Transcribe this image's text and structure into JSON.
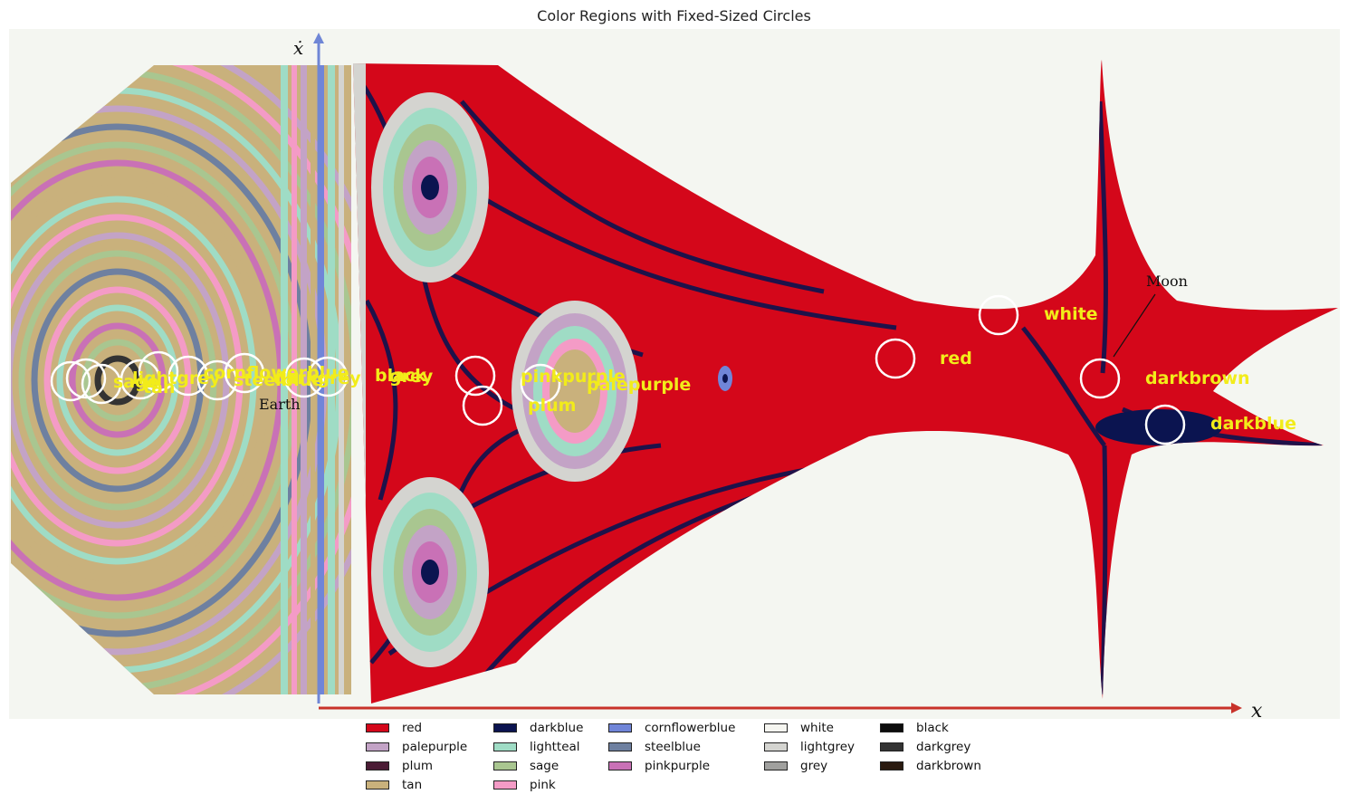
{
  "title": "Color Regions with Fixed-Sized Circles",
  "figure": {
    "axis_x_label": "x",
    "axis_y_label": "ẋ",
    "earth_label": "Earth",
    "moon_label": "Moon"
  },
  "circle_labels": [
    {
      "text": "sage"
    },
    {
      "text": "tan"
    },
    {
      "text": "lightgrey"
    },
    {
      "text": "cornflowerblue"
    },
    {
      "text": "steelblue"
    },
    {
      "text": "darkgrey"
    },
    {
      "text": "black"
    },
    {
      "text": "grey"
    },
    {
      "text": "pinkpurple"
    },
    {
      "text": "palepurple"
    },
    {
      "text": "plum"
    },
    {
      "text": "red"
    },
    {
      "text": "white"
    },
    {
      "text": "darkbrown"
    },
    {
      "text": "darkblue"
    }
  ],
  "legend": [
    {
      "label": "red",
      "color": "#d4071a"
    },
    {
      "label": "palepurple",
      "color": "#c3a3c6"
    },
    {
      "label": "plum",
      "color": "#4b1c35"
    },
    {
      "label": "tan",
      "color": "#c9b17c"
    },
    {
      "label": "darkblue",
      "color": "#0b1450"
    },
    {
      "label": "lightteal",
      "color": "#9fdcc5"
    },
    {
      "label": "sage",
      "color": "#a9c690"
    },
    {
      "label": "pink",
      "color": "#f49bc6"
    },
    {
      "label": "cornflowerblue",
      "color": "#7085d8"
    },
    {
      "label": "steelblue",
      "color": "#6e80a0"
    },
    {
      "label": "pinkpurple",
      "color": "#c971b6"
    },
    {
      "label": "white",
      "color": "#f5f5f0"
    },
    {
      "label": "lightgrey",
      "color": "#d4d4d0"
    },
    {
      "label": "grey",
      "color": "#a0a09e"
    },
    {
      "label": "black",
      "color": "#0c0c0c"
    },
    {
      "label": "darkgrey",
      "color": "#333333"
    },
    {
      "label": "darkbrown",
      "color": "#2a1a10"
    }
  ]
}
